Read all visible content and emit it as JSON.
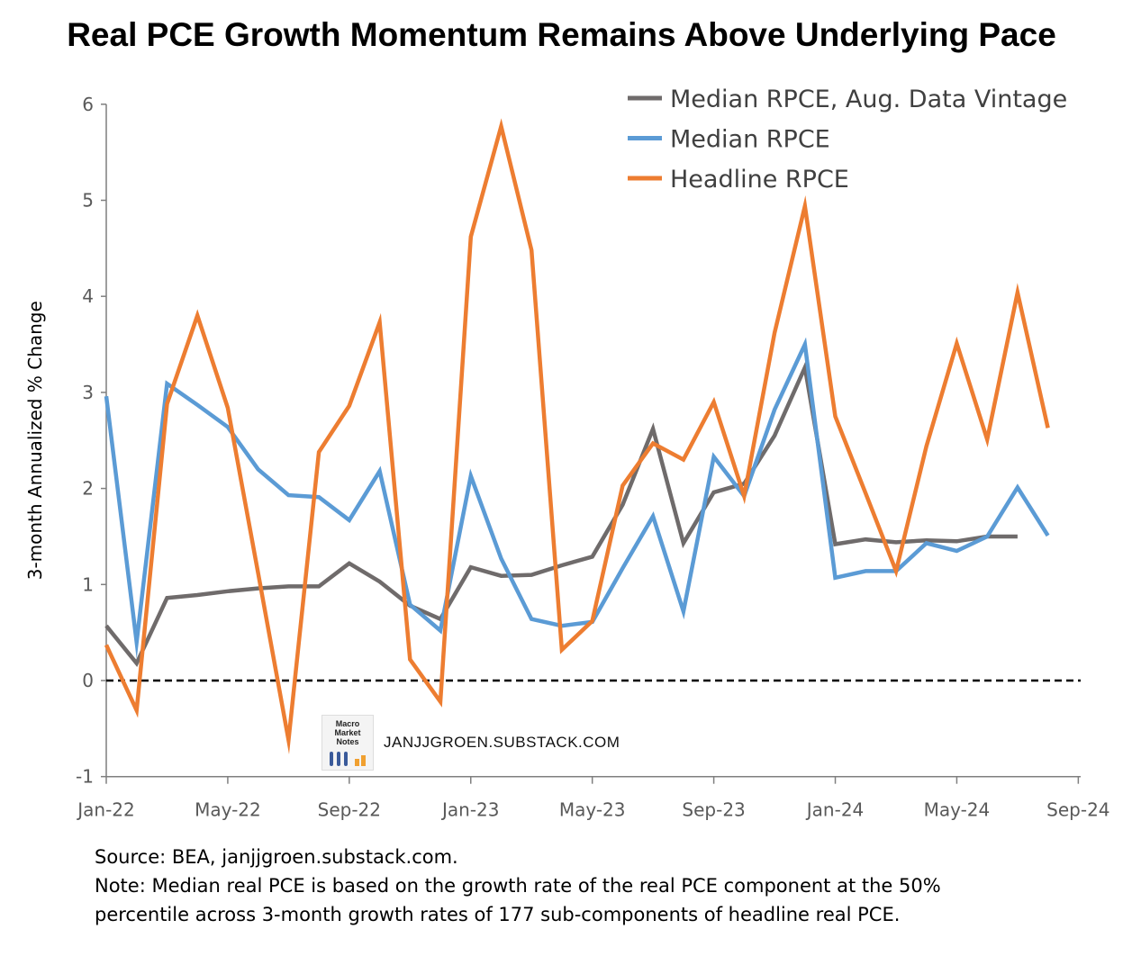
{
  "title": "Real PCE Growth Momentum Remains Above Underlying Pace",
  "watermark": {
    "logo_text": "Macro Market Notes",
    "url": "JANJJGROEN.SUBSTACK.COM"
  },
  "notes": {
    "source": "Source: BEA, janjjgroen.substack.com.",
    "note_line1": "Note: Median real PCE is based on the growth rate of the real PCE component at the 50%",
    "note_line2": "percentile across 3-month growth rates of 177 sub-components of headline real PCE."
  },
  "chart_data": {
    "type": "line",
    "ylabel": "3-month Annualized % Change",
    "xlabel": "",
    "ylim": [
      -1,
      6
    ],
    "yticks": [
      -1,
      0,
      1,
      2,
      3,
      4,
      5,
      6
    ],
    "xlim": [
      "Jan-22",
      "Sep-24"
    ],
    "xtick_labels": [
      "Jan-22",
      "May-22",
      "Sep-22",
      "Jan-23",
      "May-23",
      "Sep-23",
      "Jan-24",
      "May-24",
      "Sep-24"
    ],
    "grid": false,
    "legend_position": "top-right",
    "zero_line": "dashed",
    "x": [
      "Jan-22",
      "Feb-22",
      "Mar-22",
      "Apr-22",
      "May-22",
      "Jun-22",
      "Jul-22",
      "Aug-22",
      "Sep-22",
      "Oct-22",
      "Nov-22",
      "Dec-22",
      "Jan-23",
      "Feb-23",
      "Mar-23",
      "Apr-23",
      "May-23",
      "Jun-23",
      "Jul-23",
      "Aug-23",
      "Sep-23",
      "Oct-23",
      "Nov-23",
      "Dec-23",
      "Jan-24",
      "Feb-24",
      "Mar-24",
      "Apr-24",
      "May-24",
      "Jun-24",
      "Jul-24",
      "Aug-24"
    ],
    "series": [
      {
        "name": "Median RPCE, Aug. Data Vintage",
        "color": "#6f6b6b",
        "values": [
          0.57,
          0.18,
          0.86,
          0.89,
          0.93,
          0.96,
          0.98,
          0.98,
          1.22,
          1.03,
          0.78,
          0.64,
          1.18,
          1.09,
          1.1,
          1.2,
          1.29,
          1.83,
          2.62,
          1.43,
          1.96,
          2.05,
          2.55,
          3.26,
          1.42,
          1.47,
          1.44,
          1.46,
          1.45,
          1.5,
          1.5,
          null
        ]
      },
      {
        "name": "Median RPCE",
        "color": "#5b9bd5",
        "values": [
          2.96,
          0.4,
          3.09,
          2.87,
          2.64,
          2.2,
          1.93,
          1.91,
          1.67,
          2.18,
          0.79,
          0.52,
          2.13,
          1.27,
          0.64,
          0.57,
          0.61,
          1.17,
          1.71,
          0.72,
          2.33,
          1.92,
          2.82,
          3.5,
          1.07,
          1.14,
          1.14,
          1.43,
          1.35,
          1.5,
          2.01,
          1.51
        ]
      },
      {
        "name": "Headline RPCE",
        "color": "#ed7d31",
        "values": [
          0.37,
          -0.31,
          2.88,
          3.8,
          2.84,
          1.12,
          -0.62,
          2.38,
          2.86,
          3.73,
          0.22,
          -0.22,
          4.62,
          5.77,
          4.48,
          0.32,
          0.62,
          2.03,
          2.47,
          2.3,
          2.9,
          1.92,
          3.62,
          4.94,
          2.75,
          1.95,
          1.14,
          2.44,
          3.51,
          2.51,
          4.04,
          2.63
        ]
      }
    ]
  }
}
